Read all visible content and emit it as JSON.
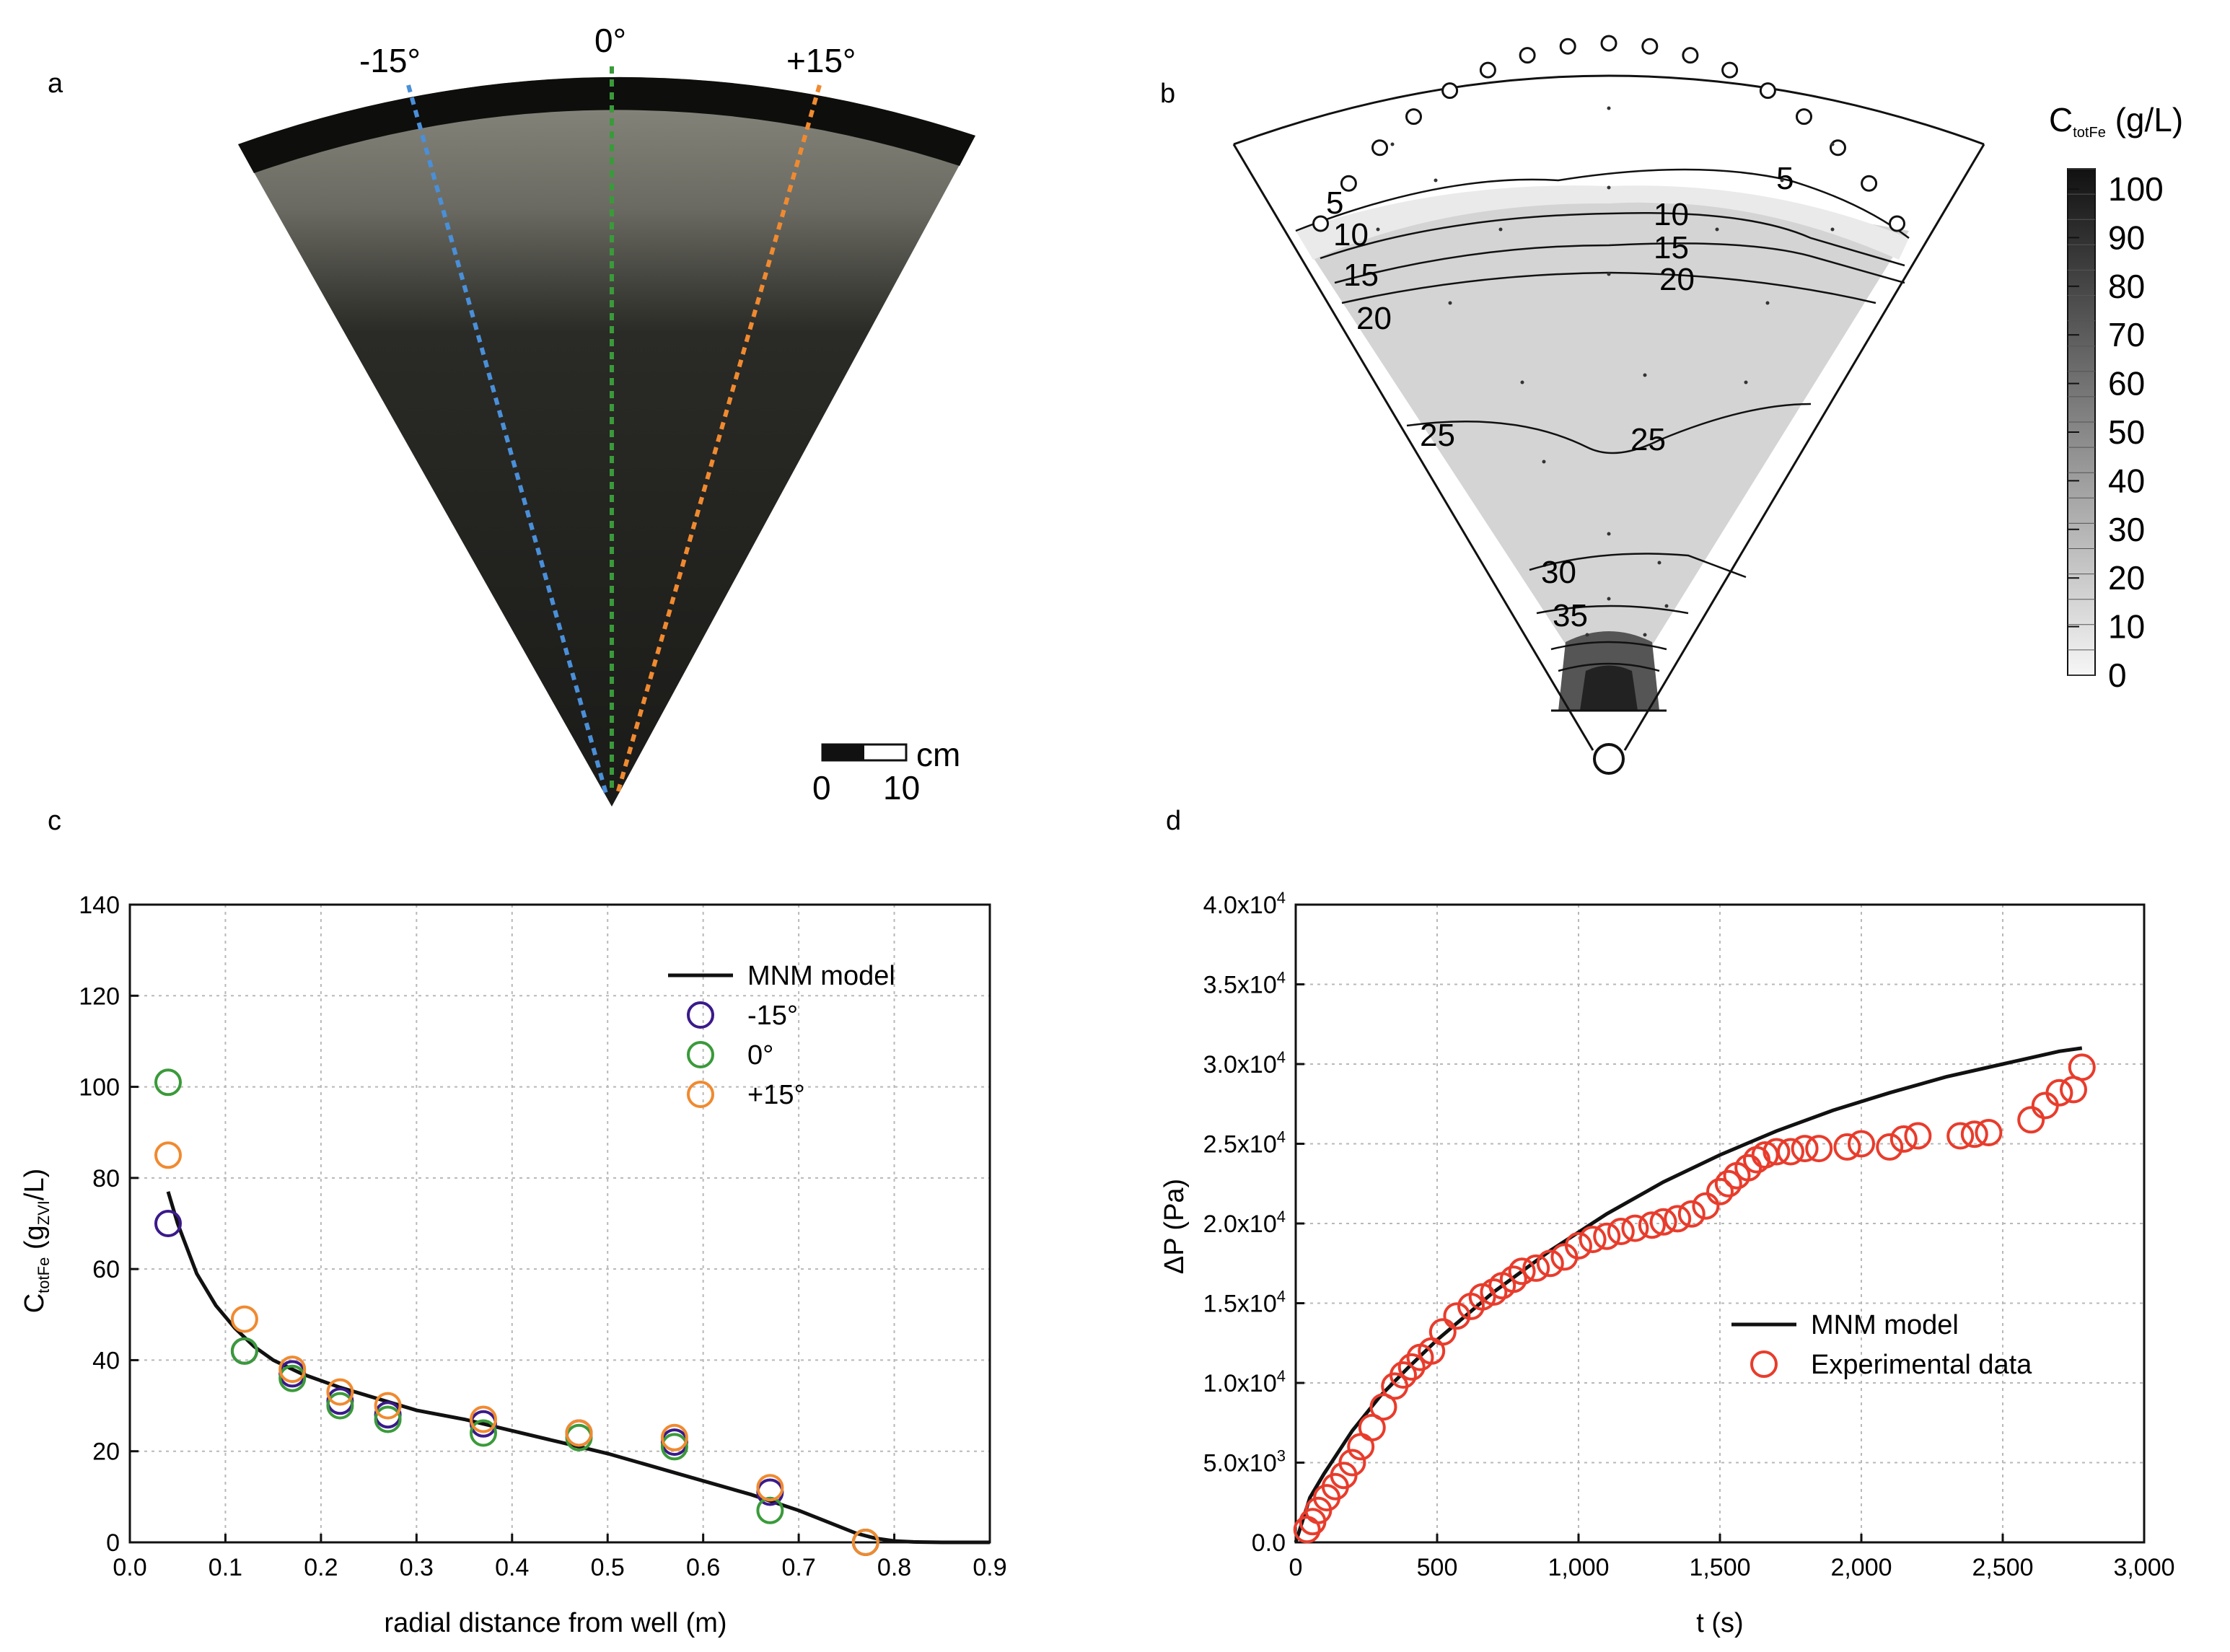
{
  "chart_data": [
    {
      "panel": "a",
      "type": "other",
      "angle_labels": [
        "-15°",
        "0°",
        "+15°"
      ],
      "scale_bar": {
        "unit": "cm",
        "ticks": [
          "0",
          "10"
        ]
      },
      "colors": {
        "-15°": "#4a8fd8",
        "0°": "#3a9a3a",
        "+15°": "#f08a30"
      }
    },
    {
      "panel": "b",
      "type": "heatmap",
      "colorbar": {
        "title": "C",
        "title_sub": "totFe",
        "title_unit": " (g/L)",
        "ticks": [
          "100",
          "90",
          "80",
          "70",
          "60",
          "50",
          "40",
          "30",
          "20",
          "10",
          "0"
        ]
      },
      "contour_labels": [
        "5",
        "5",
        "10",
        "10",
        "15",
        "15",
        "20",
        "20",
        "25",
        "25",
        "30",
        "35"
      ]
    },
    {
      "panel": "c",
      "type": "scatter",
      "xlabel": "radial distance from well (m)",
      "ylabel_main": "C",
      "ylabel_sub": "totFe",
      "ylabel_mid": " (g",
      "ylabel_sub2": "ZVI",
      "ylabel_end": "/L)",
      "xlim": [
        0.0,
        0.9
      ],
      "ylim": [
        0,
        140
      ],
      "x_ticks": [
        "0.0",
        "0.1",
        "0.2",
        "0.3",
        "0.4",
        "0.5",
        "0.6",
        "0.7",
        "0.8",
        "0.9"
      ],
      "y_ticks": [
        "0",
        "20",
        "40",
        "60",
        "80",
        "100",
        "120",
        "140"
      ],
      "grid": true,
      "legend_position": "top-right",
      "model": {
        "name": "MNM model",
        "x": [
          0.04,
          0.05,
          0.07,
          0.09,
          0.11,
          0.13,
          0.15,
          0.18,
          0.22,
          0.26,
          0.3,
          0.35,
          0.4,
          0.45,
          0.5,
          0.55,
          0.6,
          0.65,
          0.7,
          0.73,
          0.76,
          0.78,
          0.8,
          0.82,
          0.85,
          0.9
        ],
        "y": [
          77,
          70,
          59,
          52,
          47,
          43,
          40,
          37,
          34,
          31.5,
          29,
          27,
          24.5,
          22,
          19.5,
          16.5,
          13.5,
          10.5,
          7,
          4.5,
          2,
          0.9,
          0.3,
          0.1,
          0,
          0
        ]
      },
      "series": [
        {
          "name": "-15°",
          "color": "#3a1a8a",
          "x": [
            0.04,
            0.12,
            0.17,
            0.22,
            0.27,
            0.37,
            0.47,
            0.57,
            0.67,
            0.77
          ],
          "y": [
            70,
            42,
            37,
            31,
            28,
            26,
            24,
            22,
            11,
            0
          ]
        },
        {
          "name": "0°",
          "color": "#3a9a3a",
          "x": [
            0.04,
            0.12,
            0.17,
            0.22,
            0.27,
            0.37,
            0.47,
            0.57,
            0.67,
            0.77
          ],
          "y": [
            101,
            42,
            36,
            30,
            27,
            24,
            23,
            21,
            7,
            0
          ]
        },
        {
          "name": "+15°",
          "color": "#f08a30",
          "x": [
            0.04,
            0.12,
            0.17,
            0.22,
            0.27,
            0.37,
            0.47,
            0.57,
            0.67,
            0.77
          ],
          "y": [
            85,
            49,
            38,
            33,
            30,
            27,
            24,
            23,
            12,
            0
          ]
        }
      ]
    },
    {
      "panel": "d",
      "type": "scatter",
      "xlabel": "t (s)",
      "ylabel": "ΔP (Pa)",
      "xlim": [
        0,
        3000
      ],
      "ylim": [
        0,
        40000
      ],
      "x_ticks": [
        "0",
        "500",
        "1,000",
        "1,500",
        "2,000",
        "2,500",
        "3,000"
      ],
      "y_ticks": [
        {
          "m": "0.0",
          "e": ""
        },
        {
          "m": "5.0x10",
          "e": "3"
        },
        {
          "m": "1.0x10",
          "e": "4"
        },
        {
          "m": "1.5x10",
          "e": "4"
        },
        {
          "m": "2.0x10",
          "e": "4"
        },
        {
          "m": "2.5x10",
          "e": "4"
        },
        {
          "m": "3.0x10",
          "e": "4"
        },
        {
          "m": "3.5x10",
          "e": "4"
        },
        {
          "m": "4.0x10",
          "e": "4"
        }
      ],
      "grid": true,
      "legend_position": "bottom-right",
      "model": {
        "name": "MNM model",
        "x": [
          0,
          50,
          100,
          200,
          300,
          400,
          500,
          700,
          900,
          1100,
          1300,
          1500,
          1700,
          1900,
          2100,
          2300,
          2500,
          2700,
          2780
        ],
        "y": [
          0,
          2800,
          4300,
          7000,
          9200,
          11000,
          12700,
          15700,
          18300,
          20600,
          22600,
          24300,
          25800,
          27100,
          28200,
          29200,
          30000,
          30800,
          31000
        ]
      },
      "series": [
        {
          "name": "Experimental data",
          "color": "#e83c2c",
          "x": [
            40,
            60,
            80,
            110,
            140,
            170,
            200,
            230,
            270,
            310,
            350,
            380,
            410,
            440,
            480,
            520,
            570,
            620,
            660,
            700,
            730,
            770,
            800,
            850,
            900,
            950,
            1000,
            1050,
            1100,
            1150,
            1200,
            1260,
            1300,
            1350,
            1400,
            1450,
            1500,
            1530,
            1560,
            1600,
            1630,
            1660,
            1700,
            1750,
            1800,
            1850,
            1950,
            2000,
            2100,
            2150,
            2200,
            2350,
            2400,
            2450,
            2600,
            2650,
            2700,
            2750,
            2780
          ],
          "y": [
            800,
            1300,
            2000,
            2800,
            3500,
            4200,
            5000,
            6000,
            7200,
            8500,
            9800,
            10500,
            11000,
            11600,
            12000,
            13200,
            14200,
            14800,
            15400,
            15700,
            16100,
            16500,
            17000,
            17200,
            17500,
            17900,
            18600,
            19000,
            19200,
            19500,
            19700,
            19900,
            20100,
            20300,
            20600,
            21100,
            22000,
            22500,
            23000,
            23500,
            24000,
            24300,
            24500,
            24500,
            24700,
            24700,
            24800,
            25000,
            24800,
            25300,
            25500,
            25500,
            25600,
            25700,
            26500,
            27400,
            28200,
            28400,
            29800
          ]
        }
      ]
    }
  ]
}
